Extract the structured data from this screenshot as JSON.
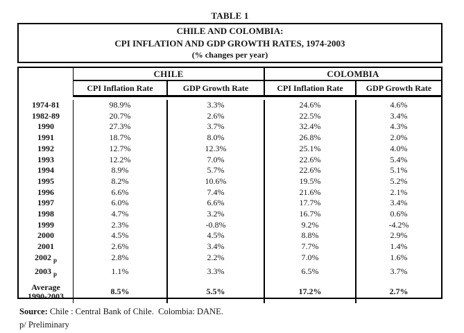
{
  "page": {
    "title": "TABLE 1"
  },
  "header_box": {
    "line1": "CHILE AND COLOMBIA:",
    "line2": "CPI INFLATION AND GDP GROWTH RATES, 1974-2003",
    "line3": "(% changes per year)"
  },
  "chart_data": {
    "type": "table",
    "title": "CHILE AND COLOMBIA: CPI INFLATION AND GDP GROWTH RATES, 1974-2003",
    "units": "% changes per year",
    "column_groups": [
      "CHILE",
      "COLOMBIA"
    ],
    "columns": [
      "CPI Inflation Rate",
      "GDP Growth Rate",
      "CPI Inflation Rate",
      "GDP Growth Rate"
    ],
    "preliminary_marker": "p",
    "rows": [
      {
        "period": "1974-81",
        "preliminary": false,
        "values": [
          "98.9%",
          "3.3%",
          "24.6%",
          "4.6%"
        ]
      },
      {
        "period": "1982-89",
        "preliminary": false,
        "values": [
          "20.7%",
          "2.6%",
          "22.5%",
          "3.4%"
        ]
      },
      {
        "period": "1990",
        "preliminary": false,
        "values": [
          "27.3%",
          "3.7%",
          "32.4%",
          "4.3%"
        ]
      },
      {
        "period": "1991",
        "preliminary": false,
        "values": [
          "18.7%",
          "8.0%",
          "26.8%",
          "2.0%"
        ]
      },
      {
        "period": "1992",
        "preliminary": false,
        "values": [
          "12.7%",
          "12.3%",
          "25.1%",
          "4.0%"
        ]
      },
      {
        "period": "1993",
        "preliminary": false,
        "values": [
          "12.2%",
          "7.0%",
          "22.6%",
          "5.4%"
        ]
      },
      {
        "period": "1994",
        "preliminary": false,
        "values": [
          "8.9%",
          "5.7%",
          "22.6%",
          "5.1%"
        ]
      },
      {
        "period": "1995",
        "preliminary": false,
        "values": [
          "8.2%",
          "10.6%",
          "19.5%",
          "5.2%"
        ]
      },
      {
        "period": "1996",
        "preliminary": false,
        "values": [
          "6.6%",
          "7.4%",
          "21.6%",
          "2.1%"
        ]
      },
      {
        "period": "1997",
        "preliminary": false,
        "values": [
          "6.0%",
          "6.6%",
          "17.7%",
          "3.4%"
        ]
      },
      {
        "period": "1998",
        "preliminary": false,
        "values": [
          "4.7%",
          "3.2%",
          "16.7%",
          "0.6%"
        ]
      },
      {
        "period": "1999",
        "preliminary": false,
        "values": [
          "2.3%",
          "-0.8%",
          "9.2%",
          "-4.2%"
        ]
      },
      {
        "period": "2000",
        "preliminary": false,
        "values": [
          "4.5%",
          "4.5%",
          "8.8%",
          "2.9%"
        ]
      },
      {
        "period": "2001",
        "preliminary": false,
        "values": [
          "2.6%",
          "3.4%",
          "7.7%",
          "1.4%"
        ]
      },
      {
        "period": "2002",
        "preliminary": true,
        "values": [
          "2.8%",
          "2.2%",
          "7.0%",
          "1.6%"
        ]
      },
      {
        "period": "2003",
        "preliminary": true,
        "values": [
          "1.1%",
          "3.3%",
          "6.5%",
          "3.7%"
        ]
      }
    ],
    "average_row": {
      "label_line1": "Average",
      "label_line2": "1990-2003",
      "values": [
        "8.5%",
        "5.5%",
        "17.2%",
        "2.7%"
      ]
    }
  },
  "footer": {
    "source_label": "Source:",
    "source_text": " Chile : Central Bank of Chile.  Colombia: DANE.",
    "preliminary_note": "p/ Preliminary"
  }
}
